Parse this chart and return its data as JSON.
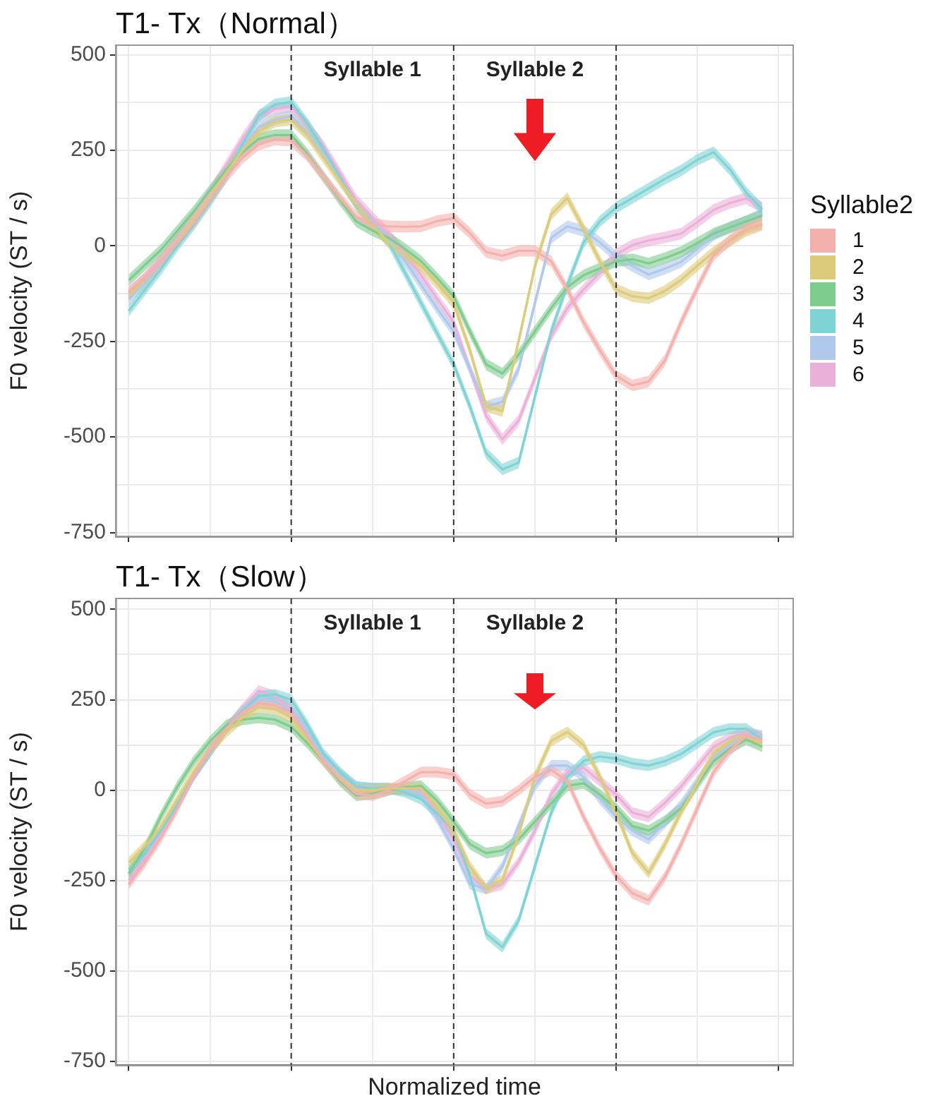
{
  "chart_data": [
    {
      "type": "line",
      "title": "T1- Tx（Normal）",
      "ylabel": "F0 velocity (ST / s)",
      "legend": "right",
      "legend_title": "Syllable2",
      "grid": true,
      "tick_labels": "y",
      "categories": [
        null,
        null,
        null,
        null,
        null,
        null,
        null,
        null,
        null,
        null,
        null,
        null,
        null,
        null,
        null,
        null,
        null,
        null,
        null,
        null,
        null,
        null,
        null,
        null,
        null,
        null,
        null,
        null,
        null,
        null,
        null,
        null,
        null,
        null,
        null,
        null,
        null,
        null,
        null,
        null
      ],
      "ylim": [
        -760,
        525
      ],
      "yticks": [
        500,
        {
          "value": 375,
          "label": null
        },
        250,
        {
          "value": 125,
          "label": null
        },
        0,
        {
          "value": -125,
          "label": null
        },
        -250,
        {
          "value": -375,
          "label": null
        },
        -500,
        {
          "value": -625,
          "label": null
        },
        -750
      ],
      "annotations": [
        "Syllable 1",
        "Syllable 2"
      ],
      "series": [
        {
          "name": "1",
          "color": "#f4b0ad",
          "values": [
            -120,
            -85,
            -40,
            8,
            60,
            120,
            180,
            230,
            265,
            278,
            275,
            235,
            180,
            125,
            76,
            58,
            51,
            50,
            51,
            65,
            72,
            33,
            -16,
            -26,
            -13,
            -13,
            -40,
            -114,
            -200,
            -273,
            -340,
            -365,
            -355,
            -300,
            -200,
            -110,
            -25,
            15,
            45,
            58
          ],
          "lower": [
            -135,
            -100,
            -55,
            -7,
            45,
            105,
            165,
            215,
            250,
            263,
            260,
            220,
            165,
            110,
            61,
            43,
            36,
            35,
            36,
            50,
            57,
            18,
            -31,
            -41,
            -28,
            -28,
            -55,
            -129,
            -215,
            -288,
            -355,
            -380,
            -370,
            -315,
            -215,
            -125,
            -40,
            0,
            30,
            43
          ],
          "upper": [
            -105,
            -70,
            -25,
            23,
            75,
            135,
            195,
            245,
            280,
            293,
            290,
            250,
            195,
            140,
            91,
            73,
            66,
            65,
            66,
            80,
            87,
            48,
            -1,
            -11,
            2,
            2,
            -25,
            -99,
            -185,
            -258,
            -325,
            -350,
            -340,
            -285,
            -185,
            -95,
            -10,
            30,
            60,
            73
          ]
        },
        {
          "name": "2",
          "color": "#dccb7a",
          "values": [
            -130,
            -88,
            -40,
            12,
            70,
            130,
            190,
            250,
            300,
            325,
            330,
            290,
            230,
            170,
            110,
            55,
            9,
            -25,
            -53,
            -100,
            -150,
            -273,
            -420,
            -432,
            -249,
            -53,
            82,
            125,
            45,
            -40,
            -114,
            -132,
            -137,
            -118,
            -89,
            -52,
            -16,
            12,
            39,
            55
          ],
          "lower": [
            -145,
            -103,
            -55,
            -3,
            55,
            115,
            175,
            235,
            285,
            310,
            315,
            275,
            215,
            155,
            95,
            40,
            -6,
            -40,
            -68,
            -115,
            -165,
            -288,
            -435,
            -447,
            -264,
            -68,
            67,
            110,
            30,
            -55,
            -129,
            -147,
            -152,
            -133,
            -104,
            -67,
            -31,
            -3,
            24,
            40
          ],
          "upper": [
            -115,
            -73,
            -25,
            27,
            85,
            145,
            205,
            265,
            315,
            340,
            345,
            305,
            245,
            185,
            125,
            70,
            24,
            -10,
            -38,
            -85,
            -135,
            -258,
            -405,
            -417,
            -234,
            -38,
            97,
            140,
            60,
            -25,
            -99,
            -117,
            -122,
            -103,
            -74,
            -37,
            -1,
            27,
            54,
            70
          ]
        },
        {
          "name": "3",
          "color": "#7fcc8f",
          "values": [
            -90,
            -50,
            -10,
            40,
            90,
            145,
            200,
            245,
            280,
            290,
            290,
            240,
            180,
            120,
            64,
            40,
            21,
            -8,
            -40,
            -85,
            -132,
            -224,
            -310,
            -334,
            -285,
            -224,
            -163,
            -108,
            -77,
            -59,
            -40,
            -35,
            -46,
            -32,
            -16,
            8,
            32,
            48,
            64,
            80
          ],
          "lower": [
            -105,
            -65,
            -25,
            25,
            75,
            130,
            185,
            230,
            265,
            275,
            275,
            225,
            165,
            105,
            49,
            25,
            6,
            -23,
            -55,
            -100,
            -147,
            -239,
            -325,
            -349,
            -300,
            -239,
            -178,
            -123,
            -92,
            -74,
            -55,
            -50,
            -61,
            -47,
            -31,
            -7,
            17,
            33,
            49,
            65
          ],
          "upper": [
            -75,
            -35,
            5,
            55,
            105,
            160,
            215,
            260,
            295,
            305,
            305,
            255,
            195,
            135,
            79,
            55,
            36,
            7,
            -25,
            -70,
            -117,
            -209,
            -295,
            -319,
            -270,
            -209,
            -148,
            -93,
            -62,
            -44,
            -25,
            -20,
            -31,
            -17,
            -1,
            23,
            47,
            63,
            79,
            95
          ]
        },
        {
          "name": "4",
          "color": "#80d3d5",
          "values": [
            -170,
            -115,
            -60,
            0,
            55,
            115,
            180,
            265,
            340,
            370,
            376,
            320,
            253,
            180,
            107,
            58,
            9,
            -70,
            -150,
            -230,
            -310,
            -420,
            -543,
            -585,
            -567,
            -395,
            -224,
            -102,
            9,
            64,
            100,
            125,
            150,
            175,
            197,
            225,
            245,
            200,
            140,
            95
          ],
          "lower": [
            -185,
            -130,
            -75,
            -15,
            40,
            100,
            165,
            250,
            325,
            355,
            361,
            305,
            238,
            165,
            92,
            43,
            -6,
            -85,
            -165,
            -245,
            -325,
            -435,
            -558,
            -600,
            -582,
            -410,
            -239,
            -117,
            -6,
            49,
            85,
            110,
            135,
            160,
            182,
            210,
            230,
            185,
            125,
            80
          ],
          "upper": [
            -155,
            -100,
            -45,
            15,
            70,
            130,
            195,
            280,
            355,
            385,
            391,
            335,
            268,
            195,
            122,
            73,
            24,
            -55,
            -135,
            -215,
            -295,
            -405,
            -528,
            -570,
            -552,
            -380,
            -209,
            -87,
            24,
            79,
            115,
            140,
            165,
            190,
            212,
            240,
            260,
            215,
            155,
            110
          ]
        },
        {
          "name": "5",
          "color": "#b0c8ec",
          "values": [
            -140,
            -95,
            -45,
            10,
            65,
            128,
            190,
            255,
            310,
            330,
            340,
            295,
            240,
            175,
            110,
            65,
            20,
            -40,
            -102,
            -165,
            -224,
            -322,
            -420,
            -408,
            -322,
            -150,
            21,
            51,
            39,
            9,
            -28,
            -53,
            -75,
            -60,
            -42,
            -8,
            28,
            48,
            64,
            85
          ],
          "lower": [
            -155,
            -110,
            -60,
            -5,
            50,
            113,
            175,
            240,
            295,
            315,
            325,
            280,
            225,
            160,
            95,
            50,
            5,
            -55,
            -117,
            -180,
            -239,
            -337,
            -435,
            -423,
            -337,
            -165,
            6,
            36,
            24,
            -6,
            -43,
            -68,
            -90,
            -75,
            -57,
            -23,
            13,
            33,
            49,
            70
          ],
          "upper": [
            -125,
            -80,
            -30,
            25,
            80,
            143,
            205,
            270,
            325,
            345,
            355,
            310,
            255,
            190,
            125,
            80,
            35,
            -25,
            -87,
            -150,
            -209,
            -307,
            -405,
            -393,
            -307,
            -135,
            36,
            66,
            54,
            24,
            -13,
            -38,
            -60,
            -45,
            -27,
            7,
            43,
            63,
            79,
            100
          ]
        },
        {
          "name": "6",
          "color": "#ebb0d9",
          "values": [
            -125,
            -82,
            -35,
            20,
            75,
            140,
            210,
            280,
            340,
            358,
            364,
            315,
            260,
            190,
            120,
            75,
            30,
            -22,
            -77,
            -140,
            -200,
            -322,
            -445,
            -506,
            -457,
            -346,
            -236,
            -163,
            -114,
            -71,
            -22,
            2,
            14,
            22,
            32,
            62,
            94,
            112,
            124,
            100
          ],
          "lower": [
            -140,
            -97,
            -50,
            5,
            60,
            125,
            195,
            265,
            325,
            343,
            349,
            300,
            245,
            175,
            105,
            60,
            15,
            -37,
            -92,
            -155,
            -215,
            -337,
            -460,
            -521,
            -472,
            -361,
            -251,
            -178,
            -129,
            -86,
            -37,
            -13,
            -1,
            7,
            17,
            47,
            79,
            97,
            109,
            85
          ],
          "upper": [
            -110,
            -67,
            -20,
            35,
            90,
            155,
            225,
            295,
            355,
            373,
            379,
            330,
            275,
            205,
            135,
            90,
            45,
            -7,
            -62,
            -125,
            -185,
            -307,
            -430,
            -491,
            -442,
            -331,
            -221,
            -148,
            -99,
            -56,
            -7,
            17,
            29,
            37,
            47,
            77,
            109,
            127,
            139,
            115
          ]
        }
      ]
    },
    {
      "type": "line",
      "title": "T1- Tx（Slow）",
      "ylabel": "F0 velocity (ST / s)",
      "xlabel": "Normalized time",
      "grid": true,
      "tick_labels": "y",
      "categories": [
        null,
        null,
        null,
        null,
        null,
        null,
        null,
        null,
        null,
        null,
        null,
        null,
        null,
        null,
        null,
        null,
        null,
        null,
        null,
        null,
        null,
        null,
        null,
        null,
        null,
        null,
        null,
        null,
        null,
        null,
        null,
        null,
        null,
        null,
        null,
        null,
        null,
        null,
        null,
        null
      ],
      "ylim": [
        -760,
        530
      ],
      "yticks": [
        500,
        {
          "value": 375,
          "label": null
        },
        250,
        {
          "value": 125,
          "label": null
        },
        0,
        {
          "value": -125,
          "label": null
        },
        -250,
        {
          "value": -375,
          "label": null
        },
        -500,
        {
          "value": -625,
          "label": null
        },
        -750
      ],
      "annotations": [
        "Syllable 1",
        "Syllable 2"
      ],
      "series": [
        {
          "color": "#f4b0ad",
          "values": [
            -260,
            -200,
            -130,
            -50,
            40,
            110,
            170,
            215,
            240,
            235,
            215,
            150,
            80,
            30,
            -10,
            -15,
            0,
            25,
            50,
            50,
            43,
            -12,
            -37,
            -31,
            0,
            37,
            56,
            25,
            -74,
            -161,
            -236,
            -285,
            -304,
            -240,
            -150,
            -50,
            50,
            110,
            150,
            140
          ],
          "lower": [
            -275,
            -215,
            -145,
            -65,
            25,
            95,
            155,
            200,
            225,
            220,
            200,
            135,
            65,
            15,
            -25,
            -30,
            -15,
            10,
            35,
            35,
            28,
            -27,
            -52,
            -46,
            -15,
            22,
            41,
            10,
            -89,
            -176,
            -251,
            -300,
            -319,
            -255,
            -165,
            -65,
            35,
            95,
            135,
            125
          ],
          "upper": [
            -245,
            -185,
            -115,
            -35,
            55,
            125,
            185,
            230,
            255,
            250,
            230,
            165,
            95,
            45,
            5,
            0,
            15,
            40,
            65,
            65,
            58,
            3,
            -22,
            -16,
            15,
            52,
            71,
            40,
            -59,
            -146,
            -221,
            -270,
            -289,
            -225,
            -135,
            -35,
            65,
            125,
            165,
            155
          ]
        },
        {
          "color": "#dccb7a",
          "values": [
            -200,
            -155,
            -100,
            -25,
            50,
            110,
            160,
            200,
            230,
            225,
            200,
            140,
            80,
            35,
            0,
            0,
            5,
            5,
            5,
            -50,
            -112,
            -211,
            -273,
            -248,
            -124,
            37,
            136,
            161,
            124,
            37,
            -62,
            -174,
            -229,
            -150,
            -60,
            20,
            100,
            135,
            150,
            130
          ],
          "lower": [
            -215,
            -170,
            -115,
            -40,
            35,
            95,
            145,
            185,
            215,
            210,
            185,
            125,
            65,
            20,
            -15,
            -15,
            -10,
            -10,
            -10,
            -65,
            -127,
            -226,
            -288,
            -263,
            -139,
            22,
            121,
            146,
            109,
            22,
            -77,
            -189,
            -244,
            -165,
            -75,
            5,
            85,
            120,
            135,
            115
          ],
          "upper": [
            -185,
            -140,
            -85,
            -10,
            65,
            125,
            175,
            215,
            245,
            240,
            215,
            155,
            95,
            50,
            15,
            15,
            20,
            20,
            20,
            -35,
            -97,
            -196,
            -258,
            -233,
            -109,
            52,
            151,
            176,
            139,
            52,
            -47,
            -159,
            -214,
            -135,
            -45,
            35,
            115,
            150,
            165,
            145
          ]
        },
        {
          "color": "#7fcc8f",
          "values": [
            -230,
            -160,
            -70,
            10,
            80,
            135,
            180,
            195,
            200,
            195,
            175,
            130,
            80,
            25,
            -15,
            -10,
            0,
            8,
            12,
            -30,
            -87,
            -149,
            -174,
            -167,
            -136,
            -87,
            -37,
            12,
            19,
            -12,
            -50,
            -99,
            -112,
            -85,
            -50,
            15,
            80,
            115,
            140,
            120
          ],
          "lower": [
            -245,
            -175,
            -85,
            -5,
            65,
            120,
            165,
            180,
            185,
            180,
            160,
            115,
            65,
            10,
            -30,
            -25,
            -15,
            -7,
            -3,
            -45,
            -102,
            -164,
            -189,
            -182,
            -151,
            -102,
            -52,
            -3,
            4,
            -27,
            -65,
            -114,
            -127,
            -100,
            -65,
            0,
            65,
            100,
            125,
            105
          ],
          "upper": [
            -215,
            -145,
            -55,
            25,
            95,
            150,
            195,
            210,
            215,
            210,
            190,
            145,
            95,
            40,
            0,
            5,
            15,
            23,
            27,
            -15,
            -72,
            -134,
            -159,
            -152,
            -121,
            -72,
            -22,
            27,
            34,
            3,
            -35,
            -84,
            -97,
            -70,
            -35,
            30,
            95,
            130,
            155,
            135
          ]
        },
        {
          "color": "#80d3d5",
          "values": [
            -220,
            -175,
            -110,
            -40,
            40,
            105,
            170,
            220,
            260,
            265,
            250,
            180,
            100,
            50,
            10,
            5,
            5,
            -5,
            -25,
            -65,
            -112,
            -236,
            -397,
            -434,
            -360,
            -211,
            -62,
            37,
            81,
            93,
            87,
            74,
            68,
            80,
            100,
            130,
            160,
            170,
            170,
            140
          ],
          "lower": [
            -235,
            -190,
            -125,
            -55,
            25,
            90,
            155,
            205,
            245,
            250,
            235,
            165,
            85,
            35,
            -5,
            -10,
            -10,
            -20,
            -40,
            -80,
            -127,
            -251,
            -412,
            -449,
            -375,
            -226,
            -77,
            22,
            66,
            78,
            72,
            59,
            53,
            65,
            85,
            115,
            145,
            155,
            155,
            125
          ],
          "upper": [
            -205,
            -160,
            -95,
            -25,
            55,
            120,
            185,
            235,
            275,
            280,
            265,
            195,
            115,
            65,
            25,
            20,
            20,
            10,
            -10,
            -50,
            -97,
            -221,
            -382,
            -419,
            -345,
            -196,
            -47,
            52,
            96,
            108,
            102,
            89,
            83,
            95,
            115,
            145,
            175,
            185,
            185,
            155
          ]
        },
        {
          "color": "#b0c8ec",
          "values": [
            -230,
            -170,
            -110,
            -40,
            40,
            105,
            170,
            215,
            250,
            245,
            220,
            160,
            90,
            45,
            10,
            5,
            5,
            0,
            -10,
            -80,
            -161,
            -260,
            -273,
            -211,
            -99,
            12,
            68,
            68,
            37,
            -25,
            -74,
            -112,
            -136,
            -90,
            -40,
            25,
            90,
            125,
            150,
            150
          ],
          "lower": [
            -245,
            -185,
            -125,
            -55,
            25,
            90,
            155,
            200,
            235,
            230,
            205,
            145,
            75,
            30,
            -5,
            -10,
            -10,
            -15,
            -25,
            -95,
            -176,
            -275,
            -288,
            -226,
            -114,
            -3,
            53,
            53,
            22,
            -40,
            -89,
            -127,
            -151,
            -105,
            -55,
            10,
            75,
            110,
            135,
            135
          ],
          "upper": [
            -215,
            -155,
            -95,
            -25,
            55,
            120,
            185,
            230,
            265,
            260,
            235,
            175,
            105,
            60,
            25,
            20,
            20,
            15,
            5,
            -65,
            -146,
            -245,
            -258,
            -196,
            -84,
            27,
            83,
            83,
            52,
            -10,
            -59,
            -97,
            -121,
            -75,
            -25,
            40,
            105,
            140,
            165,
            165
          ]
        },
        {
          "color": "#ebb0d9",
          "values": [
            -250,
            -190,
            -120,
            -40,
            40,
            105,
            170,
            225,
            275,
            260,
            225,
            160,
            90,
            45,
            5,
            5,
            5,
            0,
            -5,
            -65,
            -136,
            -236,
            -273,
            -260,
            -198,
            -112,
            -12,
            50,
            62,
            25,
            -12,
            -62,
            -74,
            -35,
            10,
            65,
            120,
            145,
            160,
            150
          ],
          "lower": [
            -265,
            -205,
            -135,
            -55,
            25,
            90,
            155,
            210,
            260,
            245,
            210,
            145,
            75,
            30,
            -10,
            -10,
            -10,
            -15,
            -20,
            -80,
            -151,
            -251,
            -288,
            -275,
            -213,
            -127,
            -27,
            35,
            47,
            10,
            -27,
            -77,
            -89,
            -50,
            -5,
            50,
            105,
            130,
            145,
            135
          ],
          "upper": [
            -235,
            -175,
            -105,
            -25,
            55,
            120,
            185,
            240,
            290,
            275,
            240,
            175,
            105,
            60,
            20,
            20,
            20,
            15,
            10,
            -50,
            -121,
            -221,
            -258,
            -245,
            -183,
            -97,
            3,
            65,
            77,
            40,
            3,
            -47,
            -59,
            -20,
            25,
            80,
            135,
            160,
            175,
            165
          ]
        }
      ]
    }
  ]
}
